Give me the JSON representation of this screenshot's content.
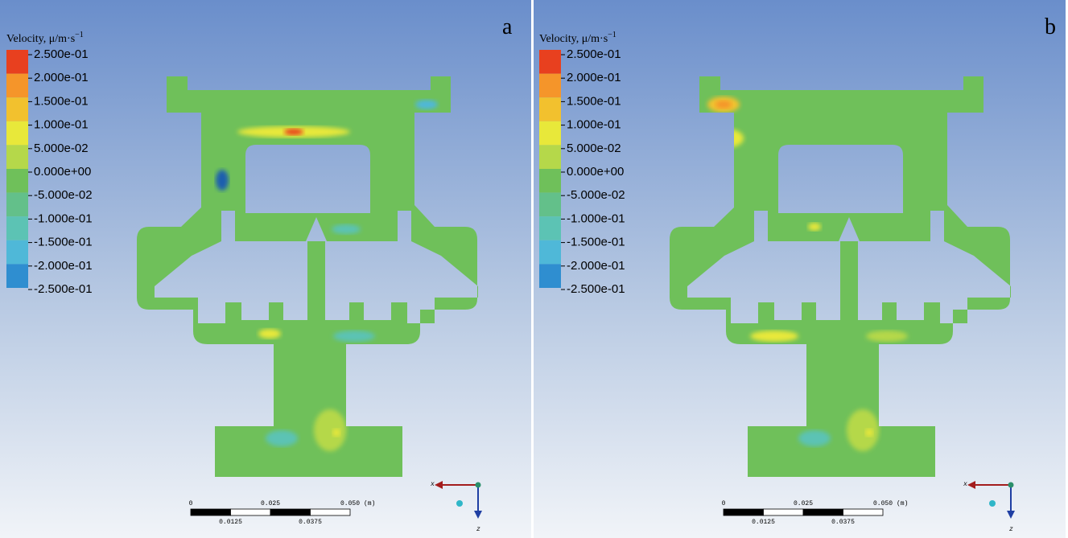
{
  "panels": [
    {
      "label": "a",
      "legend": {
        "title": "Velocity, μ/m·s",
        "title_sup": "−1",
        "labels": [
          "2.500e-01",
          "2.000e-01",
          "1.500e-01",
          "1.000e-01",
          "5.000e-02",
          "0.000e+00",
          "-5.000e-02",
          "-1.000e-01",
          "-1.500e-01",
          "-2.000e-01",
          "-2.500e-01"
        ],
        "colors": [
          "#e8401f",
          "#f5952a",
          "#f2c12e",
          "#e8e83a",
          "#b5d84a",
          "#6fc05a",
          "#63c08a",
          "#5cc3b4",
          "#4fb8d8",
          "#2f8ed0",
          "#1e5fae"
        ]
      },
      "scale_bar": {
        "major_labels": [
          "0",
          "0.025",
          "0.050"
        ],
        "unit": "(m)",
        "minor_labels": [
          "0.0125",
          "0.0375"
        ]
      },
      "axes": {
        "x": "x",
        "z": "z"
      }
    },
    {
      "label": "b",
      "legend": {
        "title": "Velocity, μ/m·s",
        "title_sup": "−1",
        "labels": [
          "2.500e-01",
          "2.000e-01",
          "1.500e-01",
          "1.000e-01",
          "5.000e-02",
          "0.000e+00",
          "-5.000e-02",
          "-1.000e-01",
          "-1.500e-01",
          "-2.000e-01",
          "-2.500e-01"
        ],
        "colors": [
          "#e8401f",
          "#f5952a",
          "#f2c12e",
          "#e8e83a",
          "#b5d84a",
          "#6fc05a",
          "#63c08a",
          "#5cc3b4",
          "#4fb8d8",
          "#2f8ed0",
          "#1e5fae"
        ]
      },
      "scale_bar": {
        "major_labels": [
          "0",
          "0.025",
          "0.050"
        ],
        "unit": "(m)",
        "minor_labels": [
          "0.0125",
          "0.0375"
        ]
      },
      "axes": {
        "x": "x",
        "z": "z"
      }
    }
  ]
}
